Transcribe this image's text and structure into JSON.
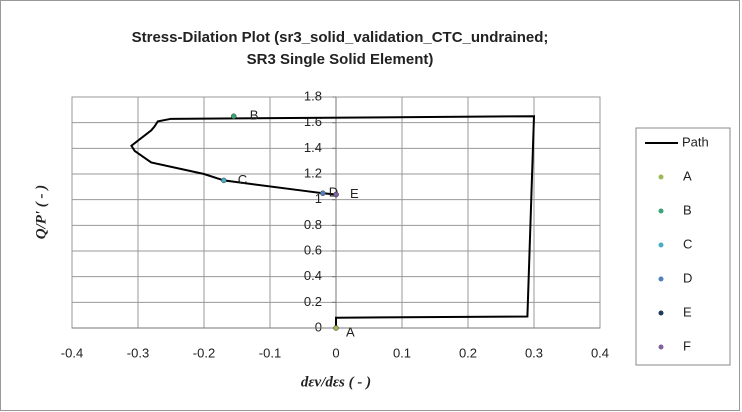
{
  "chart_data": {
    "type": "scatter",
    "title": "Stress-Dilation Plot (sr3_solid_validation_CTC_undrained;  SR3 Single Solid Element)",
    "x_label": "dεv/dεs ( - )",
    "y_label": "Q/P' ( - )",
    "xlim": [
      -0.4,
      0.4
    ],
    "xticks": [
      -0.4,
      -0.3,
      -0.2,
      -0.1,
      0,
      0.1,
      0.2,
      0.3,
      0.4
    ],
    "ylim": [
      0,
      1.8
    ],
    "yticks": [
      0,
      0.2,
      0.4,
      0.6,
      0.8,
      1,
      1.2,
      1.4,
      1.6,
      1.8
    ],
    "grid": true,
    "legend": "right",
    "series": [
      {
        "name": "Path",
        "color": "#000000",
        "mode": "line",
        "x": [
          0,
          0,
          0.29,
          0.3,
          -0.25,
          -0.27,
          -0.275,
          -0.28,
          -0.31,
          -0.305,
          -0.28,
          -0.2,
          -0.17,
          -0.05,
          -0.02,
          0
        ],
        "values": [
          0,
          0.08,
          0.09,
          1.65,
          1.63,
          1.61,
          1.57,
          1.54,
          1.42,
          1.38,
          1.29,
          1.2,
          1.15,
          1.07,
          1.05,
          1.04
        ]
      },
      {
        "name": "A",
        "color": "#9bbb59",
        "mode": "marker",
        "x": [
          0
        ],
        "values": [
          0
        ]
      },
      {
        "name": "B",
        "color": "#3aa675",
        "mode": "marker",
        "x": [
          -0.155
        ],
        "values": [
          1.65
        ]
      },
      {
        "name": "C",
        "color": "#4bacc6",
        "mode": "marker",
        "x": [
          -0.17
        ],
        "values": [
          1.15
        ]
      },
      {
        "name": "D",
        "color": "#4f81bd",
        "mode": "marker",
        "x": [
          -0.02
        ],
        "values": [
          1.05
        ]
      },
      {
        "name": "E",
        "color": "#1f3a5d",
        "mode": "marker",
        "x": [
          0
        ],
        "values": [
          1.04
        ]
      },
      {
        "name": "F",
        "color": "#8064a2",
        "mode": "marker",
        "x": [
          0
        ],
        "values": [
          1.04
        ]
      }
    ]
  }
}
